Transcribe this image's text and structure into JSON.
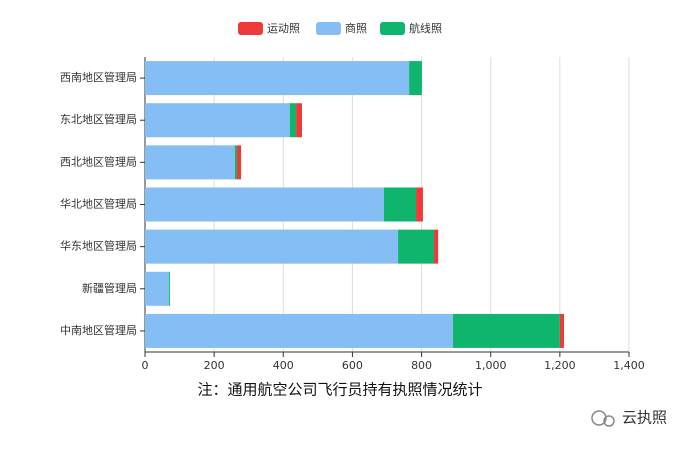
{
  "chart_data": {
    "type": "bar",
    "orientation": "horizontal",
    "stacked": true,
    "categories": [
      "西南地区管理局",
      "东北地区管理局",
      "西北地区管理局",
      "华北地区管理局",
      "华东地区管理局",
      "新疆管理局",
      "中南地区管理局"
    ],
    "series": [
      {
        "name": "运动照",
        "color": "#f03a3a",
        "values": [
          0,
          17,
          12,
          20,
          12,
          0,
          12
        ]
      },
      {
        "name": "商照",
        "color": "#85bdf5",
        "values": [
          764,
          419,
          260,
          691,
          732,
          69,
          891
        ]
      },
      {
        "name": "航线照",
        "color": "#10b56d",
        "values": [
          37,
          18,
          6,
          93,
          104,
          3,
          309
        ]
      }
    ],
    "xlim": [
      0,
      1400
    ],
    "xticks": [
      0,
      200,
      400,
      600,
      800,
      {
        "value": 1000,
        "label": "1,000"
      },
      {
        "value": 1200,
        "label": "1,200"
      },
      {
        "value": 1400,
        "label": "1,400"
      }
    ],
    "grid": true,
    "legend": "top",
    "annotation": "注：通用航空公司飞行员持有执照情况统计",
    "watermark": "云执照"
  }
}
